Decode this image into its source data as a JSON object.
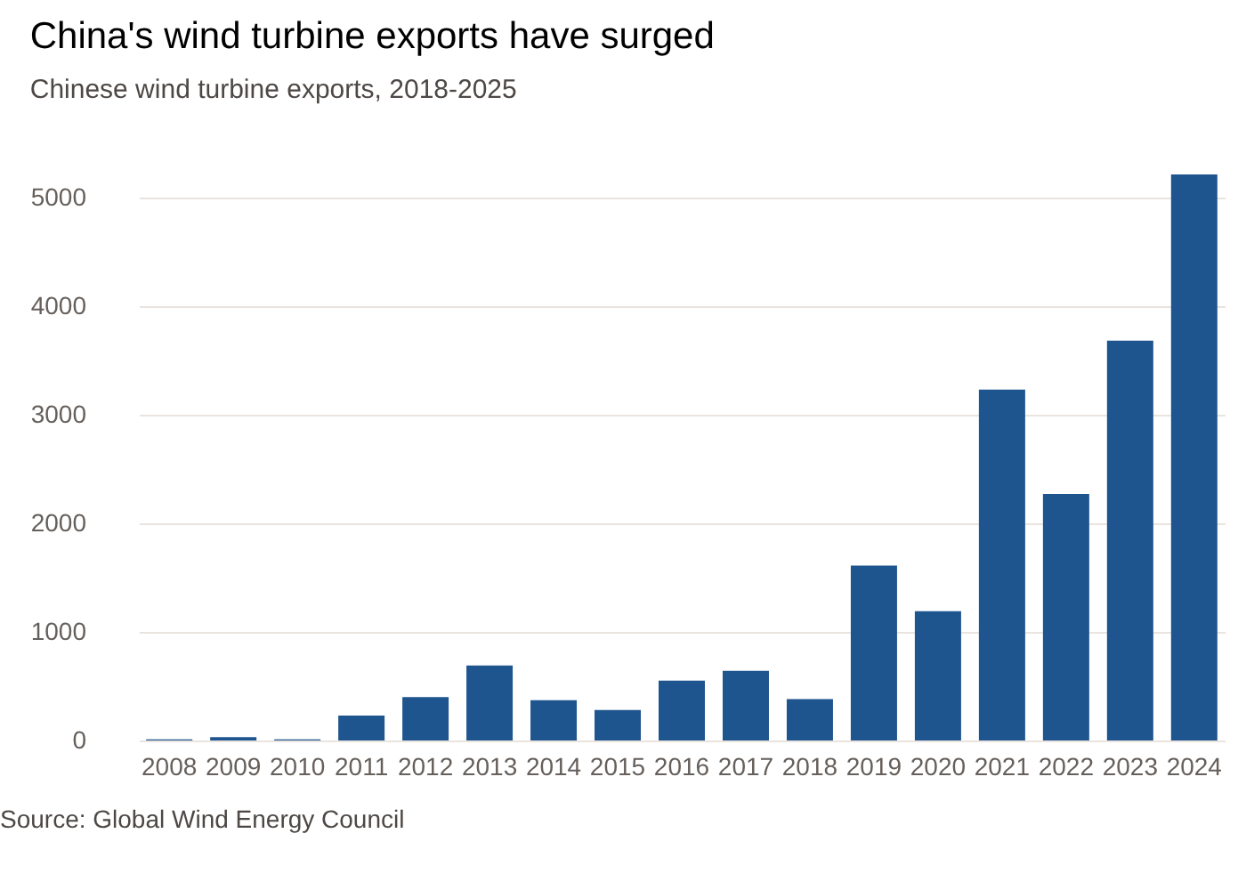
{
  "chart_data": {
    "type": "bar",
    "title": "China's wind turbine exports have surged",
    "subtitle": "Chinese wind turbine exports, 2018-2025",
    "categories": [
      "2008",
      "2009",
      "2010",
      "2011",
      "2012",
      "2013",
      "2014",
      "2015",
      "2016",
      "2017",
      "2018",
      "2019",
      "2020",
      "2021",
      "2022",
      "2023",
      "2024"
    ],
    "values": [
      10,
      30,
      10,
      230,
      400,
      690,
      370,
      280,
      550,
      640,
      380,
      1610,
      1190,
      3230,
      2270,
      3680,
      5210
    ],
    "color": "#1f558e",
    "yticks": [
      0,
      1000,
      2000,
      3000,
      4000,
      5000
    ],
    "ylim": [
      0,
      5210
    ],
    "grid": "y",
    "annotations": [
      "Source: Global Wind Energy Council"
    ]
  }
}
